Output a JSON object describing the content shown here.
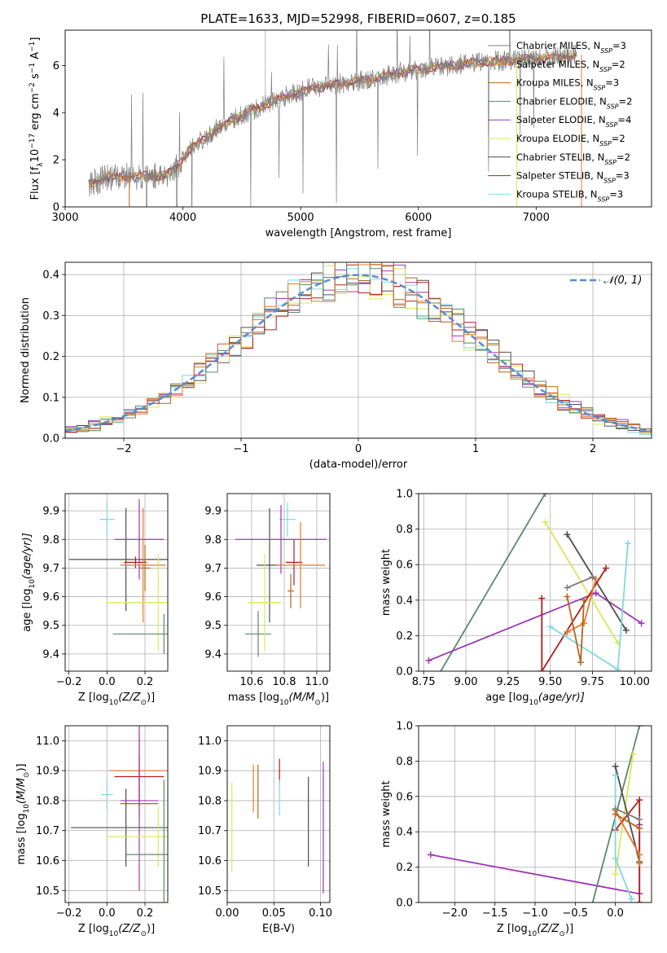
{
  "figure_title": "PLATE=1633, MJD=52998, FIBERID=0607, z=0.185",
  "colors": [
    "#7f7f7f",
    "#e6792b",
    "#b5651d",
    "#5a8a68",
    "#9c36b5",
    "#d8e85a",
    "#4d4d4d",
    "#b01e1e",
    "#80d8dc"
  ],
  "legend_sub": "SSP",
  "chart_data": [
    {
      "id": "spectrum",
      "type": "line",
      "title": "PLATE=1633, MJD=52998, FIBERID=0607, z=0.185",
      "xlabel": "wavelength [Angstrom, rest frame]",
      "ylabel_parts": [
        "Flux [f",
        "λ",
        "10",
        "−17",
        " erg cm",
        "−2",
        " s",
        "−1",
        " A",
        "−1",
        "]"
      ],
      "xlim": [
        3000,
        7980
      ],
      "ylim": [
        0,
        7.5
      ],
      "xticks": [
        3000,
        4000,
        5000,
        6000,
        7000
      ],
      "yticks": [
        0,
        2,
        4,
        6
      ],
      "grid": false,
      "legend_position": "right",
      "continuum": {
        "x": [
          3200,
          3350,
          3500,
          3700,
          3850,
          3950,
          4050,
          4200,
          4350,
          4500,
          4700,
          4900,
          5100,
          5300,
          5500,
          5700,
          5900,
          6100,
          6300,
          6500,
          6700,
          6850,
          7000,
          7200,
          7350
        ],
        "y": [
          0.95,
          1.25,
          1.3,
          1.3,
          1.35,
          1.7,
          2.4,
          3.0,
          3.5,
          3.9,
          4.35,
          4.75,
          5.05,
          5.2,
          5.35,
          5.55,
          5.75,
          5.9,
          6.0,
          6.15,
          6.2,
          6.25,
          6.3,
          6.4,
          6.45
        ]
      },
      "series": [
        {
          "name": "Chabrier MILES",
          "n": 3
        },
        {
          "name": "Salpeter MILES",
          "n": 2
        },
        {
          "name": "Kroupa MILES",
          "n": 3
        },
        {
          "name": "Chabrier ELODIE",
          "n": 2
        },
        {
          "name": "Salpeter ELODIE",
          "n": 4
        },
        {
          "name": "Kroupa ELODIE",
          "n": 2
        },
        {
          "name": "Chabrier STELIB",
          "n": 2
        },
        {
          "name": "Salpeter STELIB",
          "n": 3
        },
        {
          "name": "Kroupa STELIB",
          "n": 3
        }
      ]
    },
    {
      "id": "residuals",
      "type": "line",
      "xlabel": "(data-model)/error",
      "ylabel": "Normed distribution",
      "xlim": [
        -2.5,
        2.5
      ],
      "ylim": [
        0,
        0.43
      ],
      "xticks": [
        -2,
        -1,
        0,
        1,
        2
      ],
      "xticklabels": [
        "−2",
        "−1",
        "0",
        "1",
        "2"
      ],
      "yticks": [
        0,
        0.1,
        0.2,
        0.3,
        0.4
      ],
      "yticklabels": [
        "0.0",
        "0.1",
        "0.2",
        "0.3",
        "0.4"
      ],
      "grid": true,
      "legend_position": "top-right",
      "reference_label": "𝒩(0, 1)",
      "bin_width": 0.1,
      "bin_start": -2.5
    },
    {
      "id": "age_vs_Z",
      "type": "scatter",
      "xlabel_parts": [
        "Z [log",
        "10",
        "(Z/Z",
        "⊙",
        ")]"
      ],
      "ylabel_parts": [
        "age  [log",
        "10",
        "(age/yr)]"
      ],
      "xlim": [
        -0.22,
        0.32
      ],
      "ylim": [
        9.34,
        9.96
      ],
      "xticks": [
        -0.2,
        0.0,
        0.2
      ],
      "xticklabels": [
        "−0.2",
        "0.0",
        "0.2"
      ],
      "yticks": [
        9.4,
        9.5,
        9.6,
        9.7,
        9.8,
        9.9
      ],
      "yticklabels": [
        "9.4",
        "9.5",
        "9.6",
        "9.7",
        "9.8",
        "9.9"
      ],
      "grid": true,
      "points": [
        {
          "series": 8,
          "x": 0.0,
          "y": 9.87,
          "xerr": 0.04,
          "yerr": 0.06
        },
        {
          "series": 6,
          "x": 0.1,
          "y": 9.73,
          "xerr": 0.3,
          "yerr": 0.18
        },
        {
          "series": 7,
          "x": 0.15,
          "y": 9.72,
          "xerr": 0.06,
          "yerr": 0.02
        },
        {
          "series": 4,
          "x": 0.17,
          "y": 9.8,
          "xerr": 0.13,
          "yerr": 0.14
        },
        {
          "series": 1,
          "x": 0.19,
          "y": 9.71,
          "xerr": 0.12,
          "yerr": 0.2
        },
        {
          "series": 2,
          "x": 0.2,
          "y": 9.7,
          "xerr": 0.03,
          "yerr": 0.08
        },
        {
          "series": 5,
          "x": 0.27,
          "y": 9.58,
          "xerr": 0.27,
          "yerr": 0.17
        },
        {
          "series": 3,
          "x": 0.3,
          "y": 9.47,
          "xerr": 0.27,
          "yerr": 0.07
        }
      ]
    },
    {
      "id": "age_vs_mass",
      "type": "scatter",
      "xlabel_parts": [
        "mass [log",
        "10",
        "(M/M",
        "⊙",
        ")]"
      ],
      "xlim": [
        10.45,
        11.08
      ],
      "ylim": [
        9.34,
        9.96
      ],
      "xticks": [
        10.6,
        10.8,
        11.0
      ],
      "xticklabels": [
        "10.6",
        "10.8",
        "11.0"
      ],
      "yticks": [
        9.4,
        9.5,
        9.6,
        9.7,
        9.8,
        9.9
      ],
      "yticklabels": [
        "9.4",
        "9.5",
        "9.6",
        "9.7",
        "9.8",
        "9.9"
      ],
      "grid": true,
      "points": [
        {
          "series": 8,
          "x": 10.82,
          "y": 9.87,
          "xerr": 0.05,
          "yerr": 0.06
        },
        {
          "series": 6,
          "x": 10.71,
          "y": 9.71,
          "xerr": 0.08,
          "yerr": 0.2
        },
        {
          "series": 7,
          "x": 10.86,
          "y": 9.72,
          "xerr": 0.05,
          "yerr": 0.08
        },
        {
          "series": 4,
          "x": 10.78,
          "y": 9.8,
          "xerr": 0.28,
          "yerr": 0.12
        },
        {
          "series": 1,
          "x": 10.9,
          "y": 9.71,
          "xerr": 0.15,
          "yerr": 0.15
        },
        {
          "series": 3,
          "x": 10.64,
          "y": 9.47,
          "xerr": 0.08,
          "yerr": 0.08
        },
        {
          "series": 5,
          "x": 10.68,
          "y": 9.58,
          "xerr": 0.1,
          "yerr": 0.17
        },
        {
          "series": 2,
          "x": 10.84,
          "y": 9.62,
          "xerr": 0.02,
          "yerr": 0.06
        }
      ]
    },
    {
      "id": "weight_vs_age",
      "type": "line",
      "xlabel_parts": [
        "age  [log",
        "10",
        "(age/yr)]"
      ],
      "ylabel": "mass weight",
      "xlim": [
        8.72,
        10.1
      ],
      "ylim": [
        0,
        1
      ],
      "xticks": [
        8.75,
        9.0,
        9.25,
        9.5,
        9.75,
        10.0
      ],
      "xticklabels": [
        "8.75",
        "9.00",
        "9.25",
        "9.50",
        "9.75",
        "10.00"
      ],
      "yticks": [
        0,
        0.2,
        0.4,
        0.6,
        0.8,
        1.0
      ],
      "yticklabels": [
        "0.0",
        "0.2",
        "0.4",
        "0.6",
        "0.8",
        "1.0"
      ],
      "grid": true,
      "series": [
        {
          "series": 3,
          "x": [
            8.82,
            9.47
          ],
          "y": [
            -0.05,
            1.0
          ]
        },
        {
          "series": 4,
          "x": [
            8.78,
            9.77,
            10.04
          ],
          "y": [
            0.06,
            0.44,
            0.27
          ]
        },
        {
          "series": 5,
          "x": [
            9.47,
            9.9
          ],
          "y": [
            0.84,
            0.16
          ]
        },
        {
          "series": 6,
          "x": [
            9.6,
            9.95
          ],
          "y": [
            0.77,
            0.23
          ]
        },
        {
          "series": 7,
          "x": [
            9.45,
            9.45,
            9.83
          ],
          "y": [
            0.41,
            0.0,
            0.58
          ]
        },
        {
          "series": 8,
          "x": [
            9.5,
            9.9,
            9.96
          ],
          "y": [
            0.25,
            0.01,
            0.72
          ]
        },
        {
          "series": 1,
          "x": [
            9.6,
            9.7,
            9.77
          ],
          "y": [
            0.22,
            0.27,
            0.52
          ]
        },
        {
          "series": 2,
          "x": [
            9.6,
            9.68,
            9.7
          ],
          "y": [
            0.42,
            0.05,
            0.4
          ]
        },
        {
          "series": 0,
          "x": [
            9.6,
            9.75
          ],
          "y": [
            0.47,
            0.53
          ]
        }
      ]
    },
    {
      "id": "mass_vs_Z",
      "type": "scatter",
      "xlabel_parts": [
        "Z [log",
        "10",
        "(Z/Z",
        "⊙",
        ")]"
      ],
      "ylabel_parts": [
        "mass [log",
        "10",
        "(M/M",
        "⊙",
        ")]"
      ],
      "xlim": [
        -0.22,
        0.32
      ],
      "ylim": [
        10.46,
        11.05
      ],
      "xticks": [
        -0.2,
        0.0,
        0.2
      ],
      "xticklabels": [
        "−0.2",
        "0.0",
        "0.2"
      ],
      "yticks": [
        10.5,
        10.6,
        10.7,
        10.8,
        10.9,
        11.0
      ],
      "yticklabels": [
        "10.5",
        "10.6",
        "10.7",
        "10.8",
        "10.9",
        "11.0"
      ],
      "grid": true,
      "points": [
        {
          "series": 8,
          "x": 0.0,
          "y": 10.82,
          "xerr": 0.03,
          "yerr": 0.05
        },
        {
          "series": 1,
          "x": 0.17,
          "y": 10.9,
          "xerr": 0.16,
          "yerr": 0.12
        },
        {
          "series": 7,
          "x": 0.17,
          "y": 10.88,
          "xerr": 0.13,
          "yerr": 0.07
        },
        {
          "series": 2,
          "x": 0.17,
          "y": 10.79,
          "xerr": 0.1,
          "yerr": 0.05
        },
        {
          "series": 4,
          "x": 0.17,
          "y": 10.8,
          "xerr": 0.1,
          "yerr": 0.3
        },
        {
          "series": 6,
          "x": 0.1,
          "y": 10.71,
          "xerr": 0.29,
          "yerr": 0.13
        },
        {
          "series": 5,
          "x": 0.27,
          "y": 10.68,
          "xerr": 0.27,
          "yerr": 0.1
        },
        {
          "series": 3,
          "x": 0.3,
          "y": 10.62,
          "xerr": 0.2,
          "yerr": 0.25
        }
      ]
    },
    {
      "id": "mass_vs_EBV",
      "type": "scatter",
      "xlabel": "E(B-V)",
      "xlim": [
        0.0,
        0.11
      ],
      "ylim": [
        10.46,
        11.05
      ],
      "xticks": [
        0.0,
        0.05,
        0.1
      ],
      "xticklabels": [
        "0.00",
        "0.05",
        "0.10"
      ],
      "yticks": [
        10.5,
        10.6,
        10.7,
        10.8,
        10.9,
        11.0
      ],
      "yticklabels": [
        "10.5",
        "10.6",
        "10.7",
        "10.8",
        "10.9",
        "11.0"
      ],
      "grid": true,
      "points": [
        {
          "series": 5,
          "x": 0.005,
          "y": 10.71,
          "xerr": 0,
          "yerr": 0.15
        },
        {
          "series": 1,
          "x": 0.028,
          "y": 10.84,
          "xerr": 0,
          "yerr": 0.08
        },
        {
          "series": 2,
          "x": 0.033,
          "y": 10.83,
          "xerr": 0,
          "yerr": 0.09
        },
        {
          "series": 7,
          "x": 0.056,
          "y": 10.9,
          "xerr": 0,
          "yerr": 0.04
        },
        {
          "series": 8,
          "x": 0.056,
          "y": 10.81,
          "xerr": 0,
          "yerr": 0.06
        },
        {
          "series": 6,
          "x": 0.087,
          "y": 10.73,
          "xerr": 0,
          "yerr": 0.15
        },
        {
          "series": 4,
          "x": 0.103,
          "y": 10.71,
          "xerr": 0,
          "yerr": 0.22
        }
      ]
    },
    {
      "id": "weight_vs_Z",
      "type": "line",
      "xlabel_parts": [
        "Z [log",
        "10",
        "(Z/Z",
        "⊙",
        ")]"
      ],
      "ylabel": "mass weight",
      "xlim": [
        -2.45,
        0.45
      ],
      "ylim": [
        0,
        1
      ],
      "xticks": [
        -2.0,
        -1.5,
        -1.0,
        -0.5,
        0.0
      ],
      "xticklabels": [
        "−2.0",
        "−1.5",
        "−1.0",
        "−0.5",
        "0.0"
      ],
      "yticks": [
        0,
        0.2,
        0.4,
        0.6,
        0.8,
        1.0
      ],
      "yticklabels": [
        "0.0",
        "0.2",
        "0.4",
        "0.6",
        "0.8",
        "1.0"
      ],
      "grid": true,
      "series": [
        {
          "series": 4,
          "x": [
            -2.3,
            0.3,
            0.3
          ],
          "y": [
            0.27,
            0.05,
            0.44
          ]
        },
        {
          "series": 3,
          "x": [
            -0.3,
            0.3
          ],
          "y": [
            -0.03,
            1.0
          ]
        },
        {
          "series": 5,
          "x": [
            0.0,
            0.22
          ],
          "y": [
            0.16,
            0.84
          ]
        },
        {
          "series": 6,
          "x": [
            0.0,
            0.3
          ],
          "y": [
            0.77,
            0.23
          ]
        },
        {
          "series": 7,
          "x": [
            0.0,
            0.3,
            0.3
          ],
          "y": [
            0.41,
            0.58,
            0.0
          ]
        },
        {
          "series": 8,
          "x": [
            0.0,
            0.0,
            0.2
          ],
          "y": [
            0.72,
            0.25,
            0.02
          ]
        },
        {
          "series": 1,
          "x": [
            0.0,
            0.3,
            0.3
          ],
          "y": [
            0.52,
            0.27,
            0.22
          ]
        },
        {
          "series": 0,
          "x": [
            0.0,
            0.3
          ],
          "y": [
            0.53,
            0.47
          ]
        },
        {
          "series": 2,
          "x": [
            0.0,
            0.3
          ],
          "y": [
            0.5,
            0.42
          ]
        }
      ]
    }
  ]
}
